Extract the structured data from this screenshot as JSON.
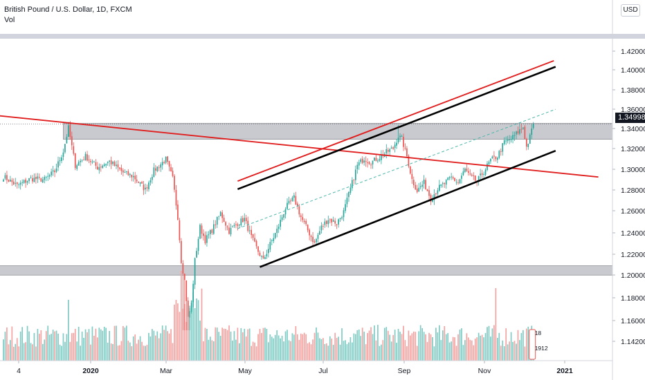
{
  "legend": {
    "symbol": "British Pound / U.S. Dollar, 1D, FXCM",
    "volume_label": "Vol"
  },
  "currency_button": "USD",
  "last_price_label": "1.34998",
  "volume_marker_labels": [
    "18",
    "1912"
  ],
  "colors": {
    "up": "#26a69a",
    "down": "#ef5350",
    "up_volume": "#80cbc4",
    "down_volume": "#f4a3a1",
    "zone_fill": "#c9cacf",
    "red_line": "#e01e1e",
    "black_line": "#000000",
    "dashed_line": "#4db6ac",
    "axis_text": "#131722"
  },
  "chart_data": {
    "type": "candlestick",
    "symbol": "GBPUSD",
    "timeframe": "1D",
    "x_ticks": [
      "4",
      "2020",
      "Mar",
      "May",
      "Jul",
      "Sep",
      "Nov",
      "2021"
    ],
    "y_ticks": [
      "1.42000",
      "1.40000",
      "1.38000",
      "1.36000",
      "1.34000",
      "1.32000",
      "1.30000",
      "1.28000",
      "1.26000",
      "1.24000",
      "1.22000",
      "1.20000",
      "1.18000",
      "1.16000",
      "1.14200"
    ],
    "ylim": [
      1.134,
      1.443
    ],
    "grid": false,
    "last_price": 1.34998,
    "anchors": [
      {
        "i": 0,
        "p": 1.298
      },
      {
        "i": 8,
        "p": 1.289
      },
      {
        "i": 16,
        "p": 1.296
      },
      {
        "i": 24,
        "p": 1.295
      },
      {
        "i": 30,
        "p": 1.303
      },
      {
        "i": 35,
        "p": 1.323
      },
      {
        "i": 38,
        "p": 1.346
      },
      {
        "i": 42,
        "p": 1.309
      },
      {
        "i": 48,
        "p": 1.318
      },
      {
        "i": 55,
        "p": 1.307
      },
      {
        "i": 62,
        "p": 1.313
      },
      {
        "i": 70,
        "p": 1.302
      },
      {
        "i": 76,
        "p": 1.298
      },
      {
        "i": 83,
        "p": 1.285
      },
      {
        "i": 88,
        "p": 1.304
      },
      {
        "i": 95,
        "p": 1.315
      },
      {
        "i": 99,
        "p": 1.296
      },
      {
        "i": 102,
        "p": 1.258
      },
      {
        "i": 104,
        "p": 1.215
      },
      {
        "i": 106,
        "p": 1.195
      },
      {
        "i": 108,
        "p": 1.158
      },
      {
        "i": 110,
        "p": 1.172
      },
      {
        "i": 112,
        "p": 1.215
      },
      {
        "i": 115,
        "p": 1.248
      },
      {
        "i": 118,
        "p": 1.235
      },
      {
        "i": 122,
        "p": 1.245
      },
      {
        "i": 127,
        "p": 1.262
      },
      {
        "i": 132,
        "p": 1.244
      },
      {
        "i": 137,
        "p": 1.252
      },
      {
        "i": 141,
        "p": 1.256
      },
      {
        "i": 145,
        "p": 1.238
      },
      {
        "i": 149,
        "p": 1.224
      },
      {
        "i": 152,
        "p": 1.215
      },
      {
        "i": 156,
        "p": 1.231
      },
      {
        "i": 160,
        "p": 1.245
      },
      {
        "i": 165,
        "p": 1.267
      },
      {
        "i": 170,
        "p": 1.277
      },
      {
        "i": 174,
        "p": 1.258
      },
      {
        "i": 178,
        "p": 1.245
      },
      {
        "i": 182,
        "p": 1.232
      },
      {
        "i": 186,
        "p": 1.248
      },
      {
        "i": 190,
        "p": 1.256
      },
      {
        "i": 195,
        "p": 1.252
      },
      {
        "i": 199,
        "p": 1.263
      },
      {
        "i": 203,
        "p": 1.286
      },
      {
        "i": 207,
        "p": 1.309
      },
      {
        "i": 211,
        "p": 1.316
      },
      {
        "i": 215,
        "p": 1.312
      },
      {
        "i": 220,
        "p": 1.317
      },
      {
        "i": 224,
        "p": 1.322
      },
      {
        "i": 228,
        "p": 1.326
      },
      {
        "i": 231,
        "p": 1.338
      },
      {
        "i": 233,
        "p": 1.335
      },
      {
        "i": 236,
        "p": 1.318
      },
      {
        "i": 239,
        "p": 1.295
      },
      {
        "i": 242,
        "p": 1.284
      },
      {
        "i": 246,
        "p": 1.292
      },
      {
        "i": 250,
        "p": 1.276
      },
      {
        "i": 254,
        "p": 1.286
      },
      {
        "i": 258,
        "p": 1.291
      },
      {
        "i": 262,
        "p": 1.297
      },
      {
        "i": 266,
        "p": 1.292
      },
      {
        "i": 270,
        "p": 1.305
      },
      {
        "i": 273,
        "p": 1.298
      },
      {
        "i": 277,
        "p": 1.293
      },
      {
        "i": 281,
        "p": 1.303
      },
      {
        "i": 285,
        "p": 1.314
      },
      {
        "i": 289,
        "p": 1.318
      },
      {
        "i": 293,
        "p": 1.332
      },
      {
        "i": 297,
        "p": 1.335
      },
      {
        "i": 301,
        "p": 1.342
      },
      {
        "i": 304,
        "p": 1.347
      },
      {
        "i": 306,
        "p": 1.327
      },
      {
        "i": 308,
        "p": 1.337
      },
      {
        "i": 310,
        "p": 1.35
      }
    ],
    "zones": [
      {
        "y1": 1.3348,
        "y2": 1.3505,
        "from_i": 35
      },
      {
        "y1": 1.2005,
        "y2": 1.2098,
        "from_i": -5
      }
    ],
    "trendlines": [
      {
        "color": "red",
        "style": "solid",
        "p1": {
          "i": -5,
          "p": 1.3585
        },
        "p2": {
          "i": 348,
          "p": 1.2975
        }
      },
      {
        "color": "red",
        "style": "solid",
        "p1": {
          "i": 137,
          "p": 1.2935
        },
        "p2": {
          "i": 322,
          "p": 1.4125
        }
      },
      {
        "color": "black",
        "style": "solid",
        "p1": {
          "i": 137,
          "p": 1.2855
        },
        "p2": {
          "i": 323,
          "p": 1.4065
        }
      },
      {
        "color": "black",
        "style": "solid",
        "p1": {
          "i": 150,
          "p": 1.2085
        },
        "p2": {
          "i": 323,
          "p": 1.3235
        }
      },
      {
        "color": "teal",
        "style": "dashed",
        "p1": {
          "i": 137,
          "p": 1.2465
        },
        "p2": {
          "i": 323,
          "p": 1.3645
        }
      }
    ]
  }
}
